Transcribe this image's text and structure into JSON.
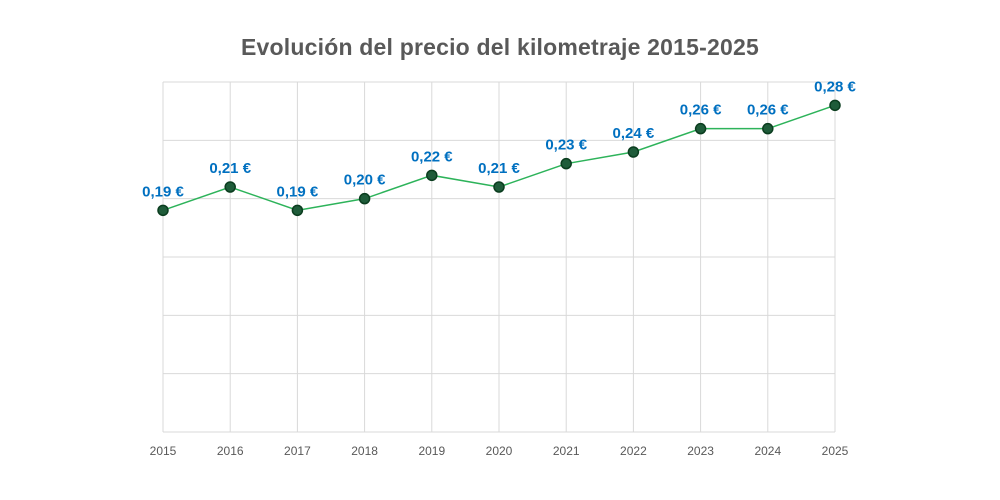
{
  "chart_data": {
    "type": "line",
    "title": "Evolución del precio del kilometraje 2015-2025",
    "xlabel": "",
    "ylabel": "",
    "categories": [
      "2015",
      "2016",
      "2017",
      "2018",
      "2019",
      "2020",
      "2021",
      "2022",
      "2023",
      "2024",
      "2025"
    ],
    "values": [
      0.19,
      0.21,
      0.19,
      0.2,
      0.22,
      0.21,
      0.23,
      0.24,
      0.26,
      0.26,
      0.28
    ],
    "data_labels": [
      "0,19 €",
      "0,21 €",
      "0,19 €",
      "0,20 €",
      "0,22 €",
      "0,21 €",
      "0,23 €",
      "0,24 €",
      "0,26 €",
      "0,26 €",
      "0,28 €"
    ],
    "ylim": [
      0,
      0.3
    ],
    "grid": true,
    "legend": "none",
    "colors": {
      "line": "#2db35a",
      "marker_fill": "#1f5c3a",
      "marker_edge": "#0b3d1f",
      "label": "#0070c0",
      "grid": "#d9d9d9",
      "title": "#595959",
      "tick": "#595959"
    }
  }
}
